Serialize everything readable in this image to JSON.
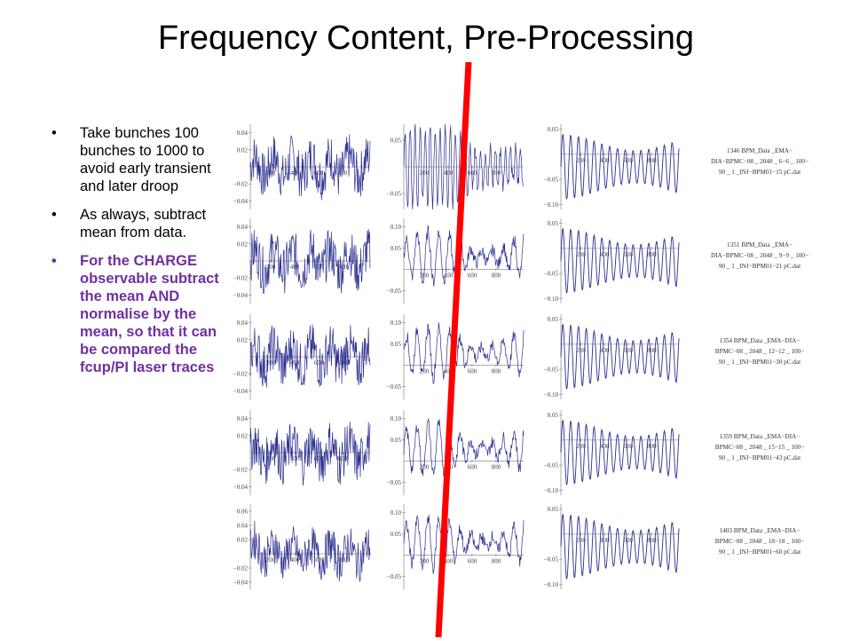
{
  "slide": {
    "title": "Frequency Content, Pre-Processing",
    "bullets": [
      {
        "text": "Take bunches 100 bunches to 1000 to avoid early transient and later droop",
        "highlight": false
      },
      {
        "text": "As always, subtract mean from data.",
        "highlight": false
      },
      {
        "text": "For the CHARGE observable subtract the mean AND normalise by the mean, so that it can be compared the fcup/PI laser traces",
        "highlight": true
      }
    ],
    "bullet_glyph": "•",
    "colors": {
      "trace": "#2b2f8f",
      "highlight_text": "#7030a0",
      "annotation_line": "#ff0000"
    }
  },
  "chart_data": [
    {
      "type": "line",
      "grid_rows": 5,
      "grid_cols": 3,
      "x_ticks": [
        "200",
        "400",
        "600",
        "800"
      ],
      "rows": [
        {
          "label_lines": [
            "1346 BPM_Data _EMA−",
            "DIA−BPMC−08 _ 2048 _ 6−6 _ 100−",
            "90 _ 1 _INJ−BPM01−15 pC.dat"
          ],
          "cols": [
            {
              "y_ticks": [
                "0.04",
                "0.02",
                "−0.02",
                "−0.04"
              ],
              "ylim": [
                -0.05,
                0.05
              ],
              "style": "noisy"
            },
            {
              "y_ticks": [
                "0.05",
                "−0.05"
              ],
              "ylim": [
                -0.08,
                0.08
              ],
              "style": "burst"
            },
            {
              "y_ticks": [
                "0.05",
                "−0.05",
                "−0.10"
              ],
              "ylim": [
                -0.11,
                0.06
              ],
              "style": "periodic"
            }
          ]
        },
        {
          "label_lines": [
            "1351 BPM_Data _EMA−",
            "DIA−BPMC−08 _ 2048 _ 9−9 _ 100−",
            "90 _ 1 _INJ−BPM01−21 pC.dat"
          ],
          "cols": [
            {
              "y_ticks": [
                "0.04",
                "0.02",
                "−0.02",
                "−0.04"
              ],
              "ylim": [
                -0.05,
                0.05
              ],
              "style": "noisy"
            },
            {
              "y_ticks": [
                "0.10",
                "0.05",
                "−0.05"
              ],
              "ylim": [
                -0.08,
                0.12
              ],
              "style": "oscill"
            },
            {
              "y_ticks": [
                "0.05",
                "−0.05",
                "−0.10"
              ],
              "ylim": [
                -0.11,
                0.06
              ],
              "style": "periodic"
            }
          ]
        },
        {
          "label_lines": [
            "1354 BPM_Data _EMA−DIA−",
            "BPMC−08 _ 2048 _ 12−12 _ 100−",
            "90 _ 1 _INJ−BPM01−30 pC.dat"
          ],
          "cols": [
            {
              "y_ticks": [
                "0.04",
                "0.02",
                "−0.02",
                "−0.04"
              ],
              "ylim": [
                -0.05,
                0.05
              ],
              "style": "noisy"
            },
            {
              "y_ticks": [
                "0.10",
                "0.05",
                "−0.05"
              ],
              "ylim": [
                -0.08,
                0.12
              ],
              "style": "oscill"
            },
            {
              "y_ticks": [
                "0.05",
                "−0.05",
                "−0.10"
              ],
              "ylim": [
                -0.11,
                0.06
              ],
              "style": "periodic"
            }
          ]
        },
        {
          "label_lines": [
            "1359 BPM_Data _EMA−DIA−",
            "BPMC−08 _ 2048 _ 15−15 _ 100−",
            "90 _ 1 _INJ−BPM01−43 pC.dat"
          ],
          "cols": [
            {
              "y_ticks": [
                "0.04",
                "0.02",
                "−0.02",
                "−0.04"
              ],
              "ylim": [
                -0.05,
                0.05
              ],
              "style": "noisy"
            },
            {
              "y_ticks": [
                "0.10",
                "0.05",
                "−0.05"
              ],
              "ylim": [
                -0.08,
                0.12
              ],
              "style": "oscill"
            },
            {
              "y_ticks": [
                "0.05",
                "−0.05",
                "−0.10"
              ],
              "ylim": [
                -0.11,
                0.06
              ],
              "style": "periodic"
            }
          ]
        },
        {
          "label_lines": [
            "1403 BPM_Data _EMA−DIA−",
            "BPMC−08 _ 2048 _ 18−18 _ 100−",
            "90 _ 1 _INJ−BPM01−60 pC.dat"
          ],
          "cols": [
            {
              "y_ticks": [
                "0.06",
                "0.04",
                "0.02",
                "−0.02",
                "−0.04"
              ],
              "ylim": [
                -0.05,
                0.07
              ],
              "style": "noisy"
            },
            {
              "y_ticks": [
                "0.10",
                "0.05",
                "−0.05"
              ],
              "ylim": [
                -0.08,
                0.12
              ],
              "style": "oscill"
            },
            {
              "y_ticks": [
                "0.05",
                "−0.05",
                "−0.10"
              ],
              "ylim": [
                -0.11,
                0.06
              ],
              "style": "periodic"
            }
          ]
        }
      ]
    }
  ]
}
